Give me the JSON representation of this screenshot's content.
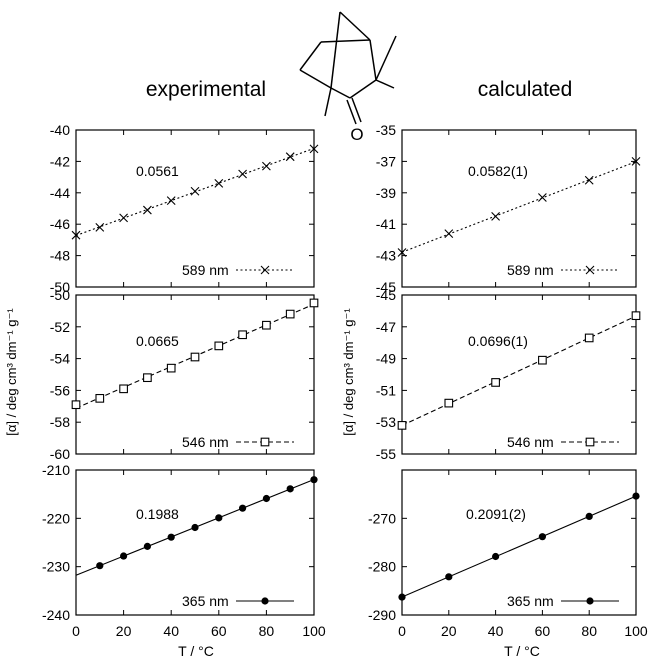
{
  "headings": {
    "experimental": "experimental",
    "calculated": "calculated"
  },
  "molecule": {
    "atom_label": "O"
  },
  "ylabel": "[α] / deg cm³ dm⁻¹ g⁻¹",
  "xlabel": "T / °C",
  "chart_data": [
    {
      "type": "line",
      "column": "experimental",
      "row": 0,
      "xlim": [
        0,
        100
      ],
      "ylim": [
        -50,
        -40
      ],
      "yticks": [
        -50,
        -48,
        -46,
        -44,
        -42,
        -40
      ],
      "xticks": [
        0,
        20,
        40,
        60,
        80,
        100
      ],
      "slope_label": "0.0561",
      "series": [
        {
          "name": "589 nm",
          "marker": "x",
          "dash": "dotted",
          "x": [
            0,
            10,
            20,
            30,
            40,
            50,
            60,
            70,
            80,
            90,
            100
          ],
          "y": [
            -46.7,
            -46.2,
            -45.6,
            -45.1,
            -44.5,
            -43.9,
            -43.4,
            -42.8,
            -42.3,
            -41.7,
            -41.2
          ]
        }
      ]
    },
    {
      "type": "line",
      "column": "experimental",
      "row": 1,
      "xlim": [
        0,
        100
      ],
      "ylim": [
        -60,
        -50
      ],
      "yticks": [
        -60,
        -58,
        -56,
        -54,
        -52,
        -50
      ],
      "xticks": [
        0,
        20,
        40,
        60,
        80,
        100
      ],
      "slope_label": "0.0665",
      "series": [
        {
          "name": "546 nm",
          "marker": "square",
          "dash": "dashed",
          "x": [
            0,
            10,
            20,
            30,
            40,
            50,
            60,
            70,
            80,
            90,
            100
          ],
          "y": [
            -56.9,
            -56.5,
            -55.9,
            -55.2,
            -54.6,
            -53.9,
            -53.2,
            -52.5,
            -51.9,
            -51.2,
            -50.5
          ]
        }
      ]
    },
    {
      "type": "line",
      "column": "experimental",
      "row": 2,
      "xlim": [
        0,
        100
      ],
      "ylim": [
        -240,
        -210
      ],
      "yticks": [
        -240,
        -230,
        -220,
        -210
      ],
      "xticks": [
        0,
        20,
        40,
        60,
        80,
        100
      ],
      "slope_label": "0.1988",
      "series": [
        {
          "name": "365 nm",
          "marker": "circle",
          "dash": "solid",
          "x": [
            10,
            20,
            30,
            40,
            50,
            60,
            70,
            80,
            90,
            100
          ],
          "y": [
            -229.8,
            -227.8,
            -225.8,
            -223.9,
            -221.9,
            -219.9,
            -217.9,
            -215.9,
            -213.9,
            -212.0
          ]
        }
      ]
    },
    {
      "type": "line",
      "column": "calculated",
      "row": 0,
      "xlim": [
        0,
        100
      ],
      "ylim": [
        -45,
        -35
      ],
      "yticks": [
        -45,
        -43,
        -41,
        -39,
        -37,
        -35
      ],
      "xticks": [
        0,
        20,
        40,
        60,
        80,
        100
      ],
      "slope_label": "0.0582(1)",
      "series": [
        {
          "name": "589 nm",
          "marker": "x",
          "dash": "dotted",
          "x": [
            0,
            20,
            40,
            60,
            80,
            100
          ],
          "y": [
            -42.8,
            -41.6,
            -40.5,
            -39.3,
            -38.2,
            -37.0
          ]
        }
      ]
    },
    {
      "type": "line",
      "column": "calculated",
      "row": 1,
      "xlim": [
        0,
        100
      ],
      "ylim": [
        -55,
        -45
      ],
      "yticks": [
        -55,
        -53,
        -51,
        -49,
        -47,
        -45
      ],
      "xticks": [
        0,
        20,
        40,
        60,
        80,
        100
      ],
      "slope_label": "0.0696(1)",
      "series": [
        {
          "name": "546 nm",
          "marker": "square",
          "dash": "dashed",
          "x": [
            0,
            20,
            40,
            60,
            80,
            100
          ],
          "y": [
            -53.2,
            -51.8,
            -50.5,
            -49.1,
            -47.7,
            -46.3
          ]
        }
      ]
    },
    {
      "type": "line",
      "column": "calculated",
      "row": 2,
      "xlim": [
        0,
        100
      ],
      "ylim": [
        -290,
        -260
      ],
      "yticks": [
        -290,
        -280,
        -270
      ],
      "xticks": [
        0,
        20,
        40,
        60,
        80,
        100
      ],
      "slope_label": "0.2091(2)",
      "series": [
        {
          "name": "365 nm",
          "marker": "circle",
          "dash": "solid",
          "x": [
            0,
            20,
            40,
            60,
            80,
            100
          ],
          "y": [
            -286.3,
            -282.1,
            -277.9,
            -273.8,
            -269.6,
            -265.4
          ]
        }
      ]
    }
  ]
}
